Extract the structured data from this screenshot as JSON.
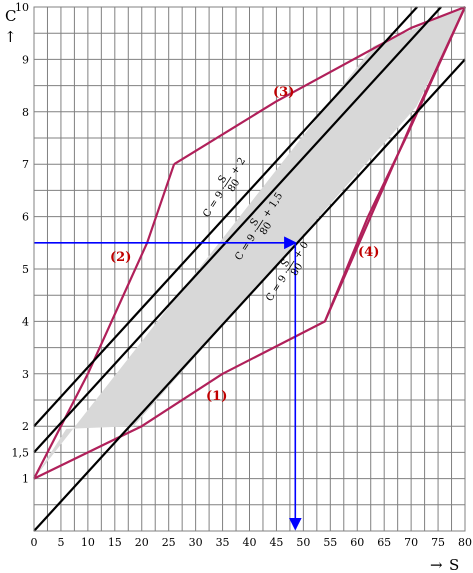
{
  "chart_data": {
    "type": "line",
    "xlabel": "S",
    "ylabel": "C",
    "xlim": [
      0,
      80
    ],
    "ylim": [
      0,
      10
    ],
    "x_ticks": [
      "0",
      "5",
      "10",
      "15",
      "20",
      "25",
      "30",
      "35",
      "40",
      "45",
      "50",
      "55",
      "60",
      "65",
      "70",
      "75",
      "80"
    ],
    "y_ticks": [
      "1",
      "1,5",
      "2",
      "3",
      "4",
      "5",
      "6",
      "7",
      "8",
      "9",
      "10"
    ],
    "y_tick_values": [
      1,
      1.5,
      2,
      3,
      4,
      5,
      6,
      7,
      8,
      9,
      10
    ],
    "grid": true,
    "shaded_region": [
      [
        0,
        1
      ],
      [
        6,
        1.95
      ],
      [
        18.5,
        2
      ],
      [
        71,
        8.1
      ],
      [
        80,
        10
      ],
      [
        63,
        9.25
      ],
      [
        0,
        1
      ]
    ],
    "boundary_curves": [
      {
        "label": "(1)",
        "points": [
          [
            0,
            1
          ],
          [
            20,
            2
          ],
          [
            35,
            3
          ],
          [
            54,
            4
          ],
          [
            71,
            8
          ],
          [
            80,
            10
          ]
        ]
      },
      {
        "label": "(2)",
        "points": [
          [
            0,
            1
          ],
          [
            10,
            3
          ],
          [
            21,
            5.5
          ],
          [
            26,
            7
          ]
        ]
      },
      {
        "label": "(3)",
        "points": [
          [
            26,
            7
          ],
          [
            45,
            8.2
          ],
          [
            70,
            9.6
          ],
          [
            80,
            10
          ]
        ]
      },
      {
        "label": "(4)",
        "points": [
          [
            54,
            4
          ],
          [
            62,
            6
          ],
          [
            69,
            7.5
          ],
          [
            80,
            10
          ]
        ]
      }
    ],
    "lines": [
      {
        "label": "C = 9 · S/80 + 2",
        "slope": 0.1125,
        "intercept": 2,
        "x_range": [
          0,
          72
        ]
      },
      {
        "label": "C = 9 · S/80 + 1,5",
        "slope": 0.1125,
        "intercept": 1.5,
        "x_range": [
          0,
          76
        ]
      },
      {
        "label": "C = 9 · S/80 + 0",
        "slope": 0.1125,
        "intercept": 0,
        "x_range": [
          0,
          80
        ]
      }
    ],
    "reading": {
      "x": 48.5,
      "y": 5.5
    }
  },
  "labels": {
    "y_axis": "C",
    "y_arrow": "↑",
    "x_axis": "S",
    "x_arrow": "→",
    "curve1": "(1)",
    "curve2": "(2)",
    "curve3": "(3)",
    "curve4": "(4)",
    "eq_prefix": "C = 9 ·",
    "eq_num": "S",
    "eq_den": "80",
    "eq1_suffix": "+ 2",
    "eq2_suffix": "+ 1,5",
    "eq3_suffix": "+ 0"
  },
  "colors": {
    "curve": "#b0205a",
    "lines": "#000000",
    "fill": "#d8d8d8",
    "reading": "#0000ff",
    "curve_label": "#c00000"
  }
}
